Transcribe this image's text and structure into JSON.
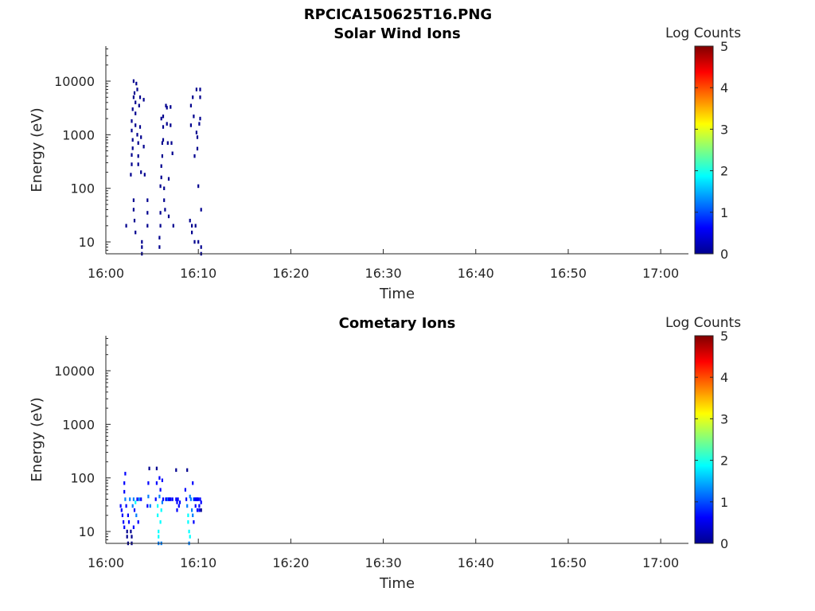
{
  "figure": {
    "title": "RPCICA150625T16.PNG"
  },
  "colorscale": [
    "#00008f",
    "#0000ff",
    "#0080ff",
    "#00ffff",
    "#80ff80",
    "#ffff00",
    "#ff8000",
    "#ff0000",
    "#800000"
  ],
  "chart_data": [
    {
      "type": "heatmap",
      "title": "Solar Wind Ions",
      "xlabel": "Time",
      "ylabel": "Energy (eV)",
      "yscale": "log",
      "x_ticks": [
        "16:00",
        "16:10",
        "16:20",
        "16:30",
        "16:40",
        "16:50",
        "17:00"
      ],
      "xlim_minutes": [
        0,
        63
      ],
      "y_ticks": [
        10,
        100,
        1000,
        10000
      ],
      "y_tick_labels": [
        "10",
        "100",
        "1000",
        "10000"
      ],
      "ylim": [
        6,
        45000
      ],
      "colorbar": {
        "label": "Log Counts",
        "ticks": [
          "0",
          "1",
          "2",
          "3",
          "4",
          "5"
        ],
        "range": [
          0,
          5
        ]
      },
      "cells": [
        [
          2.2,
          20,
          0.3
        ],
        [
          2.7,
          180,
          0.2
        ],
        [
          2.8,
          280,
          0.2
        ],
        [
          2.8,
          420,
          0.2
        ],
        [
          2.9,
          560,
          0.2
        ],
        [
          2.9,
          800,
          0.2
        ],
        [
          2.8,
          1200,
          0.2
        ],
        [
          2.8,
          1800,
          0.2
        ],
        [
          2.9,
          3000,
          0.2
        ],
        [
          3.0,
          5000,
          0.2
        ],
        [
          3.0,
          10000,
          0.2
        ],
        [
          3.1,
          6000,
          0.2
        ],
        [
          3.2,
          4000,
          0.2
        ],
        [
          3.2,
          2500,
          0.2
        ],
        [
          3.2,
          1500,
          0.2
        ],
        [
          3.0,
          60,
          0.3
        ],
        [
          3.0,
          40,
          0.3
        ],
        [
          3.1,
          25,
          0.3
        ],
        [
          3.2,
          15,
          0.3
        ],
        [
          3.3,
          9000,
          0.2
        ],
        [
          3.4,
          7000,
          0.2
        ],
        [
          3.4,
          1000,
          0.2
        ],
        [
          3.5,
          700,
          0.2
        ],
        [
          3.5,
          400,
          0.2
        ],
        [
          3.5,
          280,
          0.2
        ],
        [
          3.6,
          3500,
          0.2
        ],
        [
          3.7,
          5000,
          0.2
        ],
        [
          3.7,
          1400,
          0.2
        ],
        [
          3.8,
          900,
          0.2
        ],
        [
          3.8,
          200,
          0.2
        ],
        [
          3.9,
          6,
          0.3
        ],
        [
          3.9,
          8,
          0.3
        ],
        [
          3.9,
          10,
          0.3
        ],
        [
          4.1,
          4500,
          0.2
        ],
        [
          4.1,
          600,
          0.2
        ],
        [
          4.2,
          180,
          0.2
        ],
        [
          4.5,
          20,
          0.3
        ],
        [
          4.5,
          35,
          0.3
        ],
        [
          4.5,
          60,
          0.3
        ],
        [
          5.8,
          12,
          0.3
        ],
        [
          5.8,
          8,
          0.3
        ],
        [
          5.9,
          20,
          0.3
        ],
        [
          5.9,
          35,
          0.3
        ],
        [
          5.9,
          110,
          0.2
        ],
        [
          6.0,
          160,
          0.2
        ],
        [
          6.0,
          260,
          0.2
        ],
        [
          6.1,
          400,
          0.2
        ],
        [
          6.1,
          700,
          0.2
        ],
        [
          6.0,
          2000,
          0.2
        ],
        [
          6.2,
          2200,
          0.2
        ],
        [
          6.2,
          1400,
          0.2
        ],
        [
          6.2,
          800,
          0.2
        ],
        [
          6.3,
          100,
          0.2
        ],
        [
          6.3,
          60,
          0.3
        ],
        [
          6.4,
          40,
          0.3
        ],
        [
          6.5,
          3500,
          0.2
        ],
        [
          6.6,
          3200,
          0.2
        ],
        [
          6.6,
          1600,
          0.2
        ],
        [
          6.7,
          700,
          0.2
        ],
        [
          6.8,
          150,
          0.2
        ],
        [
          6.8,
          30,
          0.3
        ],
        [
          7.0,
          3300,
          0.2
        ],
        [
          7.0,
          1500,
          0.2
        ],
        [
          7.1,
          700,
          0.2
        ],
        [
          7.2,
          450,
          0.2
        ],
        [
          7.3,
          20,
          0.3
        ],
        [
          9.1,
          25,
          0.3
        ],
        [
          9.2,
          3500,
          0.2
        ],
        [
          9.2,
          1500,
          0.2
        ],
        [
          9.3,
          20,
          0.3
        ],
        [
          9.3,
          15,
          0.3
        ],
        [
          9.4,
          5000,
          0.2
        ],
        [
          9.5,
          2200,
          0.2
        ],
        [
          9.6,
          400,
          0.2
        ],
        [
          9.6,
          10,
          0.3
        ],
        [
          9.7,
          20,
          0.3
        ],
        [
          9.8,
          7000,
          0.2
        ],
        [
          9.8,
          1100,
          0.2
        ],
        [
          9.9,
          900,
          0.2
        ],
        [
          9.9,
          550,
          0.2
        ],
        [
          10.0,
          110,
          0.2
        ],
        [
          10.0,
          10,
          0.3
        ],
        [
          10.1,
          1600,
          0.2
        ],
        [
          10.2,
          2000,
          0.2
        ],
        [
          10.2,
          5000,
          0.2
        ],
        [
          10.2,
          7000,
          0.2
        ],
        [
          10.3,
          40,
          0.3
        ],
        [
          10.3,
          6,
          0.3
        ],
        [
          10.3,
          8,
          0.3
        ]
      ]
    },
    {
      "type": "heatmap",
      "title": "Cometary Ions",
      "xlabel": "Time",
      "ylabel": "Energy (eV)",
      "yscale": "log",
      "x_ticks": [
        "16:00",
        "16:10",
        "16:20",
        "16:30",
        "16:40",
        "16:50",
        "17:00"
      ],
      "xlim_minutes": [
        0,
        63
      ],
      "y_ticks": [
        10,
        100,
        1000,
        10000
      ],
      "y_tick_labels": [
        "10",
        "100",
        "1000",
        "10000"
      ],
      "ylim": [
        6,
        45000
      ],
      "colorbar": {
        "label": "Log Counts",
        "ticks": [
          "0",
          "1",
          "2",
          "3",
          "4",
          "5"
        ],
        "range": [
          0,
          5
        ]
      },
      "cells": [
        [
          1.6,
          30,
          0.6
        ],
        [
          1.7,
          25,
          0.6
        ],
        [
          1.8,
          20,
          0.5
        ],
        [
          1.9,
          15,
          0.5
        ],
        [
          2.0,
          12,
          0.4
        ],
        [
          2.0,
          55,
          0.5
        ],
        [
          2.0,
          80,
          0.8
        ],
        [
          2.1,
          120,
          0.5
        ],
        [
          2.1,
          40,
          1.2
        ],
        [
          2.2,
          30,
          0.9
        ],
        [
          2.3,
          10,
          0.3
        ],
        [
          2.3,
          8,
          0.2
        ],
        [
          2.4,
          6,
          0.2
        ],
        [
          2.4,
          20,
          0.8
        ],
        [
          2.5,
          15,
          0.5
        ],
        [
          2.6,
          40,
          1.0
        ],
        [
          2.7,
          10,
          0.3
        ],
        [
          2.8,
          8,
          0.2
        ],
        [
          2.8,
          6,
          0.2
        ],
        [
          2.9,
          30,
          1.5
        ],
        [
          3.0,
          40,
          1.2
        ],
        [
          3.0,
          12,
          0.4
        ],
        [
          3.1,
          25,
          0.9
        ],
        [
          3.2,
          35,
          1.8
        ],
        [
          3.3,
          20,
          1.0
        ],
        [
          3.4,
          40,
          0.9
        ],
        [
          3.5,
          15,
          0.5
        ],
        [
          3.6,
          40,
          1.2
        ],
        [
          3.8,
          40,
          0.8
        ],
        [
          4.5,
          30,
          0.6
        ],
        [
          4.6,
          45,
          1.0
        ],
        [
          4.6,
          80,
          0.5
        ],
        [
          4.7,
          150,
          0.3
        ],
        [
          4.8,
          30,
          1.5
        ],
        [
          5.4,
          40,
          0.8
        ],
        [
          5.5,
          80,
          0.5
        ],
        [
          5.5,
          150,
          0.3
        ],
        [
          5.6,
          30,
          2.0
        ],
        [
          5.6,
          20,
          1.8
        ],
        [
          5.7,
          10,
          1.6
        ],
        [
          5.7,
          6,
          1.5
        ],
        [
          5.7,
          8,
          1.8
        ],
        [
          5.8,
          45,
          1.2
        ],
        [
          5.8,
          100,
          0.6
        ],
        [
          5.9,
          15,
          1.9
        ],
        [
          5.9,
          60,
          0.8
        ],
        [
          6.0,
          25,
          1.6
        ],
        [
          6.0,
          6,
          1.4
        ],
        [
          6.1,
          35,
          1.0
        ],
        [
          6.1,
          90,
          0.5
        ],
        [
          6.2,
          40,
          0.8
        ],
        [
          6.5,
          40,
          0.6
        ],
        [
          6.6,
          40,
          0.8
        ],
        [
          6.7,
          40,
          1.0
        ],
        [
          6.8,
          40,
          0.9
        ],
        [
          6.9,
          40,
          0.7
        ],
        [
          7.0,
          40,
          0.6
        ],
        [
          7.2,
          40,
          0.5
        ],
        [
          7.6,
          140,
          0.3
        ],
        [
          7.6,
          40,
          0.9
        ],
        [
          7.7,
          35,
          0.6
        ],
        [
          7.7,
          25,
          0.4
        ],
        [
          7.8,
          40,
          0.7
        ],
        [
          7.9,
          30,
          0.4
        ],
        [
          8.0,
          35,
          0.5
        ],
        [
          8.6,
          60,
          0.6
        ],
        [
          8.7,
          40,
          0.9
        ],
        [
          8.8,
          30,
          1.2
        ],
        [
          8.8,
          140,
          0.3
        ],
        [
          8.9,
          20,
          1.6
        ],
        [
          8.9,
          15,
          1.8
        ],
        [
          9.0,
          10,
          1.8
        ],
        [
          9.0,
          6,
          1.4
        ],
        [
          9.1,
          8,
          1.7
        ],
        [
          9.1,
          45,
          1.2
        ],
        [
          9.2,
          40,
          1.0
        ],
        [
          9.3,
          25,
          1.2
        ],
        [
          9.4,
          20,
          1.0
        ],
        [
          9.4,
          80,
          0.4
        ],
        [
          9.5,
          15,
          0.8
        ],
        [
          9.5,
          40,
          1.0
        ],
        [
          9.6,
          40,
          0.9
        ],
        [
          9.7,
          30,
          0.8
        ],
        [
          9.7,
          40,
          0.6
        ],
        [
          9.8,
          40,
          0.7
        ],
        [
          9.9,
          25,
          0.6
        ],
        [
          9.9,
          40,
          0.5
        ],
        [
          10.0,
          40,
          0.6
        ],
        [
          10.1,
          30,
          0.5
        ],
        [
          10.1,
          25,
          0.4
        ],
        [
          10.2,
          40,
          0.5
        ],
        [
          10.3,
          35,
          0.4
        ],
        [
          10.3,
          25,
          0.3
        ]
      ]
    }
  ]
}
